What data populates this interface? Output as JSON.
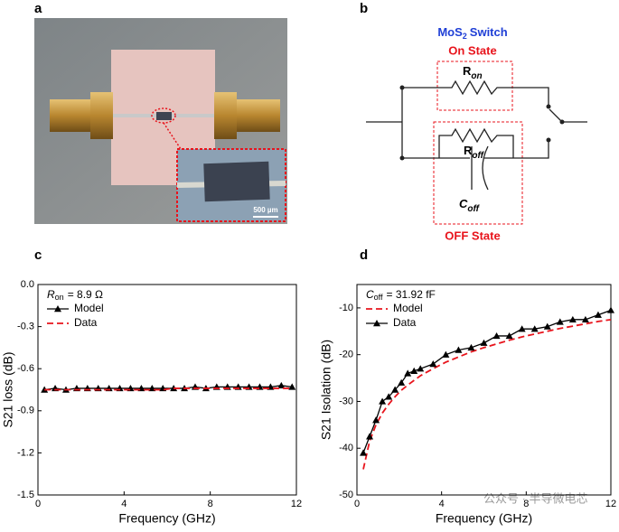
{
  "panels": [
    "a",
    "b",
    "c",
    "d"
  ],
  "photo": {
    "scale_bar": "500 µm"
  },
  "circuit": {
    "title": {
      "main": "MoS",
      "sub": "2",
      "rest": "Switch"
    },
    "on_state": "On State",
    "off_state": "OFF State",
    "r_on": {
      "main": "R",
      "sub": "on"
    },
    "r_off": {
      "main": "R",
      "sub": "off"
    },
    "c_off": {
      "main": "C",
      "sub": "off"
    }
  },
  "watermark": "公众号 · 半导微电芯",
  "chart_data": [
    {
      "type": "line",
      "xlabel": "Frequency (GHz)",
      "ylabel": "S21 loss (dB)",
      "annotation": {
        "symbol": "R",
        "subscript": "on",
        "text": "= 8.9 Ω"
      },
      "x": [
        0.3,
        0.8,
        1.3,
        1.8,
        2.3,
        2.8,
        3.3,
        3.8,
        4.3,
        4.8,
        5.3,
        5.8,
        6.3,
        6.8,
        7.3,
        7.8,
        8.3,
        8.8,
        9.3,
        9.8,
        10.3,
        10.8,
        11.3,
        11.8
      ],
      "series": [
        {
          "name": "Model",
          "color": "#000000",
          "marker": "triangle",
          "dash": false,
          "values": [
            -0.75,
            -0.74,
            -0.75,
            -0.74,
            -0.74,
            -0.74,
            -0.74,
            -0.74,
            -0.74,
            -0.74,
            -0.74,
            -0.74,
            -0.74,
            -0.74,
            -0.73,
            -0.74,
            -0.73,
            -0.73,
            -0.73,
            -0.73,
            -0.73,
            -0.73,
            -0.72,
            -0.73
          ]
        },
        {
          "name": "Data",
          "color": "#e8141c",
          "marker": null,
          "dash": true,
          "values": [
            -0.75,
            -0.75,
            -0.75,
            -0.75,
            -0.75,
            -0.75,
            -0.75,
            -0.75,
            -0.75,
            -0.75,
            -0.75,
            -0.75,
            -0.74,
            -0.74,
            -0.74,
            -0.74,
            -0.74,
            -0.74,
            -0.74,
            -0.74,
            -0.74,
            -0.74,
            -0.74,
            -0.74
          ]
        }
      ],
      "xlim": [
        0,
        12
      ],
      "xticks": [
        0,
        4,
        8,
        12
      ],
      "ylim": [
        -1.5,
        0
      ],
      "yticks": [
        {
          "value": 0,
          "label": "0.0"
        },
        -0.3,
        -0.6,
        -0.9,
        -1.2,
        -1.5
      ]
    },
    {
      "type": "line",
      "xlabel": "Frequency (GHz)",
      "ylabel": "S21 Isolation (dB)",
      "annotation": {
        "symbol": "C",
        "subscript": "off",
        "text": "= 31.92 fF"
      },
      "x": [
        0.3,
        0.6,
        0.9,
        1.2,
        1.5,
        1.8,
        2.1,
        2.4,
        2.7,
        3.0,
        3.6,
        4.2,
        4.8,
        5.4,
        6.0,
        6.6,
        7.2,
        7.8,
        8.4,
        9.0,
        9.6,
        10.2,
        10.8,
        11.4,
        12.0
      ],
      "series": [
        {
          "name": "Model",
          "color": "#e8141c",
          "marker": null,
          "dash": true,
          "values": [
            -44.5,
            -38.5,
            -35.0,
            -32.5,
            -30.6,
            -29.0,
            -27.6,
            -26.5,
            -25.5,
            -24.5,
            -23.0,
            -21.6,
            -20.5,
            -19.4,
            -18.5,
            -17.7,
            -16.9,
            -16.2,
            -15.6,
            -15.0,
            -14.4,
            -13.9,
            -13.4,
            -12.9,
            -12.5
          ]
        },
        {
          "name": "Data",
          "color": "#000000",
          "marker": "triangle",
          "dash": false,
          "values": [
            -41,
            -37.5,
            -34,
            -30,
            -29,
            -27.5,
            -26,
            -24,
            -23.5,
            -23,
            -22,
            -20,
            -19,
            -18.5,
            -17.5,
            -16,
            -16,
            -14.5,
            -14.5,
            -14,
            -13,
            -12.5,
            -12.5,
            -11.5,
            -10.5
          ]
        }
      ],
      "xlim": [
        0,
        12
      ],
      "xticks": [
        0,
        4,
        8,
        12
      ],
      "ylim": [
        -50,
        -5
      ],
      "yticks": [
        -10,
        -20,
        -30,
        -40,
        -50
      ]
    }
  ]
}
